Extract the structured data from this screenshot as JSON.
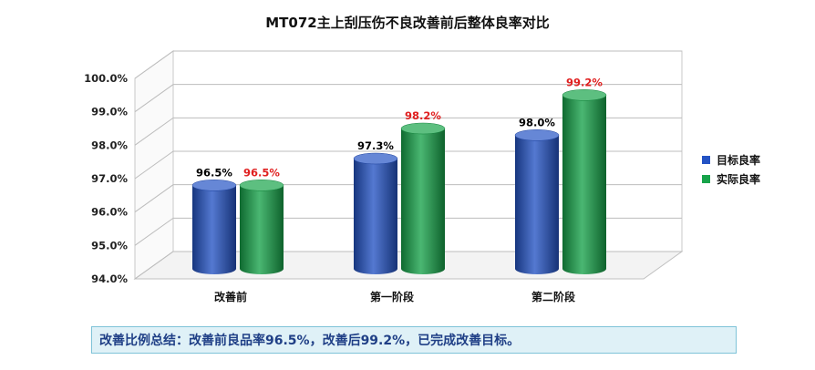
{
  "chart_data": {
    "type": "bar",
    "title": "MT072主上刮压伤不良改善前后整体良率对比",
    "categories": [
      "改善前",
      "第一阶段",
      "第二阶段"
    ],
    "series": [
      {
        "name": "目标良率",
        "values": [
          96.5,
          97.3,
          98.0
        ],
        "labels": [
          "96.5%",
          "97.3%",
          "98.0%"
        ],
        "color": "#2453c4",
        "label_color": "#000000"
      },
      {
        "name": "实际良率",
        "values": [
          96.5,
          98.2,
          99.2
        ],
        "labels": [
          "96.5%",
          "98.2%",
          "99.2%"
        ],
        "color": "#17a34a",
        "label_color": "#e02020"
      }
    ],
    "yticks": [
      "94.0%",
      "95.0%",
      "96.0%",
      "97.0%",
      "98.0%",
      "99.0%",
      "100.0%"
    ],
    "ylim": [
      94.0,
      100.0
    ],
    "grid": true,
    "legend_position": "right"
  },
  "summary": "改善比例总结：改善前良品率96.5%，改善后99.2%，已完成改善目标。"
}
